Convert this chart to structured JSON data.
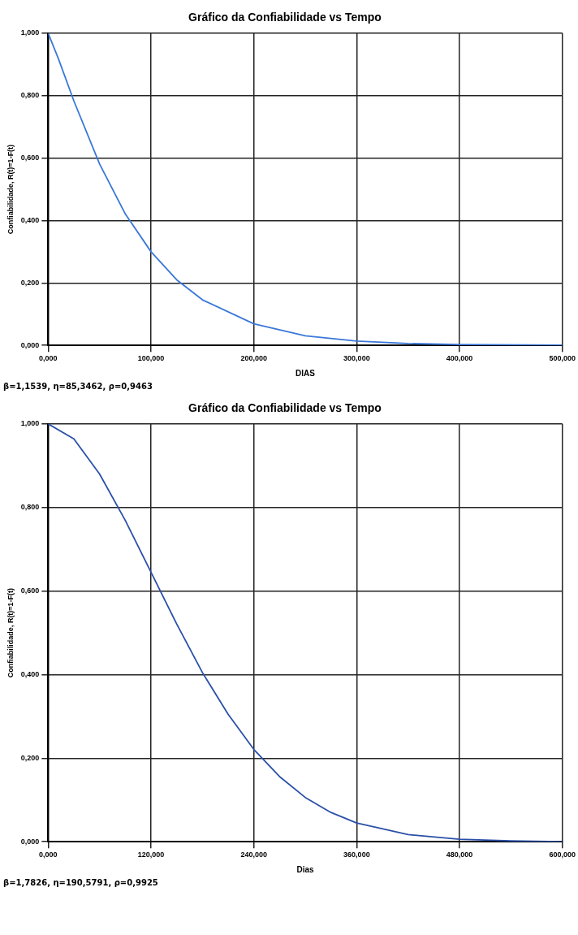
{
  "chart_data": [
    {
      "type": "line",
      "title": "Gráfico da Confiabilidade vs Tempo",
      "xlabel": "DIAS",
      "ylabel": "Confiabilidade, R(t)=1-F(t)",
      "annotations": [
        "β=1,1539, η=85,3462, ρ=0,9463"
      ],
      "x": [
        0,
        10,
        25,
        50,
        75,
        100,
        125,
        150,
        200,
        250,
        300,
        350,
        400,
        500
      ],
      "series": [
        {
          "color": "#3a78d8",
          "values": [
            1,
            0.918,
            0.783,
            0.581,
            0.421,
            0.3,
            0.21,
            0.146,
            0.069,
            0.031,
            0.014,
            0.006,
            0.003,
            0.001
          ]
        }
      ],
      "xlim": [
        0,
        500
      ],
      "ylim": [
        0,
        1
      ],
      "xticks": [
        {
          "value": 0,
          "label": "0,000"
        },
        {
          "value": 100,
          "label": "100,000"
        },
        {
          "value": 200,
          "label": "200,000"
        },
        {
          "value": 300,
          "label": "300,000"
        },
        {
          "value": 400,
          "label": "400,000"
        },
        {
          "value": 500,
          "label": "500,000"
        }
      ],
      "yticks": [
        {
          "value": 0,
          "label": "0,000"
        },
        {
          "value": 0.2,
          "label": "0,200"
        },
        {
          "value": 0.4,
          "label": "0,400"
        },
        {
          "value": 0.6,
          "label": "0,600"
        },
        {
          "value": 0.8,
          "label": "0,800"
        },
        {
          "value": 1,
          "label": "1,000"
        }
      ],
      "grid": true,
      "marker": "none",
      "line_style": "solid"
    },
    {
      "type": "line",
      "title": "Gráfico da Confiabilidade vs Tempo",
      "xlabel": "Dias",
      "ylabel": "Confiabilidade, R(t)=1-F(t)",
      "annotations": [
        "β=1,7826, η=190,5791, ρ=0,9925"
      ],
      "x": [
        0,
        30,
        60,
        90,
        120,
        150,
        180,
        210,
        240,
        270,
        300,
        330,
        360,
        420,
        480,
        540,
        600
      ],
      "series": [
        {
          "color": "#2a50a8",
          "values": [
            1,
            0.964,
            0.88,
            0.769,
            0.645,
            0.521,
            0.405,
            0.305,
            0.221,
            0.156,
            0.106,
            0.07,
            0.045,
            0.017,
            0.006,
            0.002,
            0
          ]
        }
      ],
      "xlim": [
        0,
        600
      ],
      "ylim": [
        0,
        1
      ],
      "xticks": [
        {
          "value": 0,
          "label": "0,000"
        },
        {
          "value": 120,
          "label": "120,000"
        },
        {
          "value": 240,
          "label": "240,000"
        },
        {
          "value": 360,
          "label": "360,000"
        },
        {
          "value": 480,
          "label": "480,000"
        },
        {
          "value": 600,
          "label": "600,000"
        }
      ],
      "yticks": [
        {
          "value": 0,
          "label": "0,000"
        },
        {
          "value": 0.2,
          "label": "0,200"
        },
        {
          "value": 0.4,
          "label": "0,400"
        },
        {
          "value": 0.6,
          "label": "0,600"
        },
        {
          "value": 0.8,
          "label": "0,800"
        },
        {
          "value": 1,
          "label": "1,000"
        }
      ],
      "grid": true,
      "marker": "none",
      "line_style": "solid"
    }
  ]
}
